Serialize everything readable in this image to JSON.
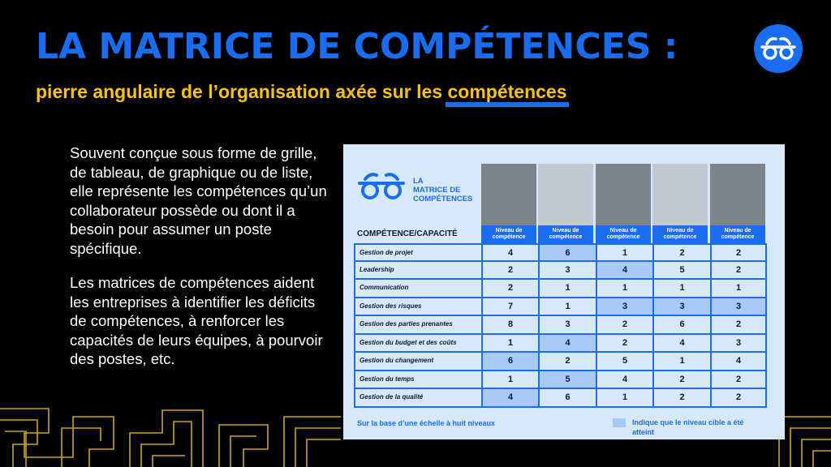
{
  "header": {
    "title": "LA MATRICE DE COMPÉTENCES :",
    "subtitle_main": "pierre angulaire de l’organisation axée sur les ",
    "subtitle_highlight": "compétences"
  },
  "logo_icon": "glasses-icon",
  "body": {
    "paragraph1": "Souvent conçue sous forme de grille, de tableau, de graphique ou de liste, elle représente les compétences qu’un collaborateur possède ou dont il a besoin pour assumer un poste spécifique.",
    "paragraph2": "Les matrices de compétences aident les entreprises à identifier les déficits de compétences, à renforcer les capacités de leurs équipes, à pourvoir des postes, etc."
  },
  "matrix": {
    "title": "LA\nMATRICE DE\nCOMPÉTENCES",
    "row_header": "COMPÉTENCE/CAPACITÉ",
    "column_label": "Niveau de compétence",
    "columns": [
      "Niveau de compétence",
      "Niveau de compétence",
      "Niveau de compétence",
      "Niveau de compétence",
      "Niveau de compétence"
    ],
    "rows": [
      {
        "skill": "Gestion de projet",
        "values": [
          4,
          6,
          1,
          2,
          2
        ],
        "hit": [
          false,
          true,
          false,
          false,
          false
        ]
      },
      {
        "skill": "Leadership",
        "values": [
          2,
          3,
          4,
          5,
          2
        ],
        "hit": [
          false,
          false,
          true,
          false,
          false
        ]
      },
      {
        "skill": "Communication",
        "values": [
          2,
          1,
          1,
          1,
          1
        ],
        "hit": [
          false,
          false,
          false,
          false,
          false
        ]
      },
      {
        "skill": "Gestion des risques",
        "values": [
          7,
          1,
          3,
          3,
          3
        ],
        "hit": [
          false,
          false,
          true,
          true,
          true
        ]
      },
      {
        "skill": "Gestion des parties prenantes",
        "values": [
          8,
          3,
          2,
          6,
          2
        ],
        "hit": [
          false,
          false,
          false,
          false,
          false
        ]
      },
      {
        "skill": "Gestion du budget et des coûts",
        "values": [
          1,
          4,
          2,
          4,
          3
        ],
        "hit": [
          false,
          true,
          false,
          false,
          false
        ]
      },
      {
        "skill": "Gestion du changement",
        "values": [
          6,
          2,
          5,
          1,
          4
        ],
        "hit": [
          true,
          false,
          false,
          false,
          false
        ]
      },
      {
        "skill": "Gestion du temps",
        "values": [
          1,
          5,
          4,
          2,
          2
        ],
        "hit": [
          false,
          true,
          false,
          false,
          false
        ]
      },
      {
        "skill": "Gestion de la qualité",
        "values": [
          4,
          6,
          1,
          2,
          2
        ],
        "hit": [
          true,
          false,
          false,
          false,
          false
        ]
      }
    ],
    "footer_note": "Sur la base d’une échelle à huit niveaux",
    "legend": "Indique que le niveau cible a été atteint"
  },
  "colors": {
    "accent_blue": "#1a6cf0",
    "accent_yellow": "#f7c21b",
    "card_bg": "#d8e8fb",
    "hit_fill": "#a8c8f5"
  }
}
